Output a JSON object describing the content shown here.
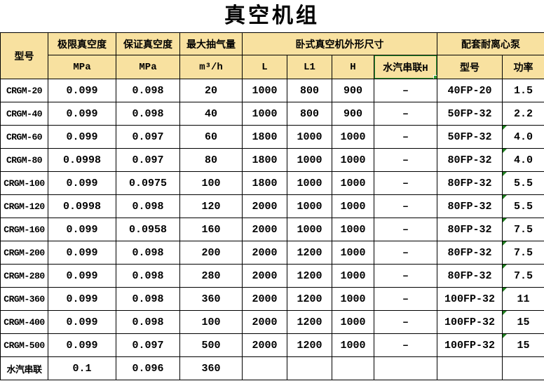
{
  "title": "真空机组",
  "colors": {
    "header_bg": "#F8E1A0",
    "grid": "#000000",
    "selection_green": "#35A035",
    "error_triangle_green": "#1E7D1E"
  },
  "selection": {
    "selected_cell": "水汽串联H"
  },
  "table": {
    "header": {
      "model": "型号",
      "ultimate_vacuum": "极限真空度",
      "guaranteed_vacuum": "保证真空度",
      "max_pumping": "最大抽气量",
      "dimensions_group": "卧式真空机外形尺寸",
      "pump_group": "配套耐离心泵",
      "unit_mpa_1": "MPa",
      "unit_mpa_2": "MPa",
      "unit_m3h": "m³/h",
      "dim_l": "L",
      "dim_l1": "L1",
      "dim_h": "H",
      "dim_steam_h": "水汽串联H",
      "pump_model": "型号",
      "pump_power": "功率"
    },
    "columns": [
      "model",
      "ultimate",
      "guaranteed",
      "capacity",
      "l",
      "l1",
      "h",
      "steam_h",
      "pump_model",
      "power"
    ],
    "rows": [
      {
        "model": "CRGM-20",
        "ultimate": "0.099",
        "guaranteed": "0.098",
        "capacity": "20",
        "l": "1000",
        "l1": "800",
        "h": "900",
        "steam_h": "–",
        "pump_model": "40FP-20",
        "power": "1.5",
        "error_flag": false
      },
      {
        "model": "CRGM-40",
        "ultimate": "0.099",
        "guaranteed": "0.098",
        "capacity": "40",
        "l": "1000",
        "l1": "800",
        "h": "900",
        "steam_h": "–",
        "pump_model": "50FP-32",
        "power": "2.2",
        "error_flag": false
      },
      {
        "model": "CRGM-60",
        "ultimate": "0.099",
        "guaranteed": "0.097",
        "capacity": "60",
        "l": "1800",
        "l1": "1000",
        "h": "1000",
        "steam_h": "–",
        "pump_model": "50FP-32",
        "power": "4.0",
        "error_flag": true
      },
      {
        "model": "CRGM-80",
        "ultimate": "0.0998",
        "guaranteed": "0.097",
        "capacity": "80",
        "l": "1800",
        "l1": "1000",
        "h": "1000",
        "steam_h": "–",
        "pump_model": "80FP-32",
        "power": "4.0",
        "error_flag": true
      },
      {
        "model": "CRGM-100",
        "ultimate": "0.099",
        "guaranteed": "0.0975",
        "capacity": "100",
        "l": "1800",
        "l1": "1000",
        "h": "1000",
        "steam_h": "–",
        "pump_model": "80FP-32",
        "power": "5.5",
        "error_flag": true
      },
      {
        "model": "CRGM-120",
        "ultimate": "0.0998",
        "guaranteed": "0.098",
        "capacity": "120",
        "l": "2000",
        "l1": "1000",
        "h": "1000",
        "steam_h": "–",
        "pump_model": "80FP-32",
        "power": "5.5",
        "error_flag": true
      },
      {
        "model": "CRGM-160",
        "ultimate": "0.099",
        "guaranteed": "0.0958",
        "capacity": "160",
        "l": "2000",
        "l1": "1000",
        "h": "1000",
        "steam_h": "–",
        "pump_model": "80FP-32",
        "power": "7.5",
        "error_flag": true
      },
      {
        "model": "CRGM-200",
        "ultimate": "0.099",
        "guaranteed": "0.098",
        "capacity": "200",
        "l": "2000",
        "l1": "1200",
        "h": "1000",
        "steam_h": "–",
        "pump_model": "80FP-32",
        "power": "7.5",
        "error_flag": true
      },
      {
        "model": "CRGM-280",
        "ultimate": "0.099",
        "guaranteed": "0.098",
        "capacity": "280",
        "l": "2000",
        "l1": "1200",
        "h": "1000",
        "steam_h": "–",
        "pump_model": "80FP-32",
        "power": "7.5",
        "error_flag": true
      },
      {
        "model": "CRGM-360",
        "ultimate": "0.099",
        "guaranteed": "0.098",
        "capacity": "360",
        "l": "2000",
        "l1": "1200",
        "h": "1000",
        "steam_h": "–",
        "pump_model": "100FP-32",
        "power": "11",
        "error_flag": true
      },
      {
        "model": "CRGM-400",
        "ultimate": "0.099",
        "guaranteed": "0.098",
        "capacity": "100",
        "l": "2000",
        "l1": "1200",
        "h": "1000",
        "steam_h": "–",
        "pump_model": "100FP-32",
        "power": "15",
        "error_flag": true
      },
      {
        "model": "CRGM-500",
        "ultimate": "0.099",
        "guaranteed": "0.097",
        "capacity": "500",
        "l": "2000",
        "l1": "1200",
        "h": "1000",
        "steam_h": "–",
        "pump_model": "100FP-32",
        "power": "15",
        "error_flag": true
      },
      {
        "model": "水汽串联",
        "ultimate": "0.1",
        "guaranteed": "0.096",
        "capacity": "360",
        "l": "",
        "l1": "",
        "h": "",
        "steam_h": "",
        "pump_model": "",
        "power": "",
        "error_flag": false
      }
    ]
  }
}
